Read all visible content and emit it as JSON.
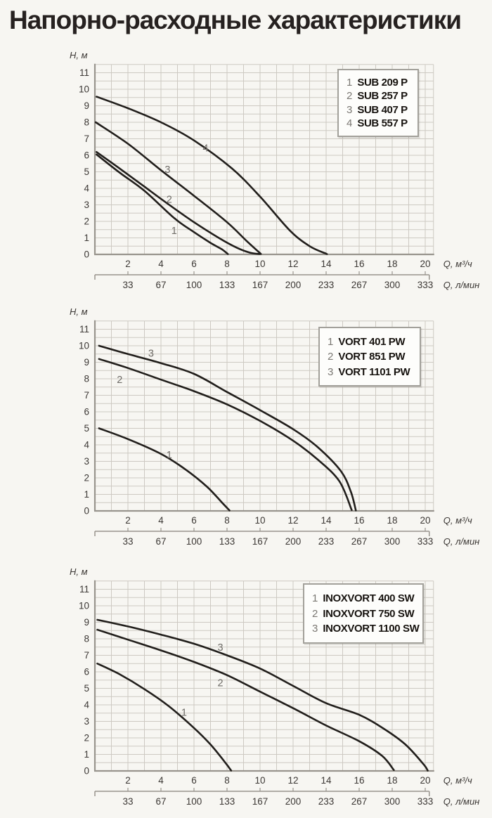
{
  "page": {
    "title": "Напорно-расходные характеристики"
  },
  "colors": {
    "background": "#f7f6f2",
    "grid": "#cdc9c2",
    "axis": "#98948d",
    "curve": "#211e1b",
    "text": "#3c3835",
    "muted": "#6f6c67",
    "legend_border": "#a2a09a"
  },
  "chart_data": [
    {
      "type": "line",
      "y_axis_label": "H, м",
      "x_axis_label_primary": "Q, м³/ч",
      "x_axis_label_secondary": "Q, л/мин",
      "y_ticks": [
        0,
        1,
        2,
        3,
        4,
        5,
        6,
        7,
        8,
        9,
        10,
        11
      ],
      "x_ticks_primary": [
        2,
        4,
        6,
        8,
        10,
        12,
        14,
        16,
        18,
        20
      ],
      "x_ticks_secondary": [
        33,
        67,
        100,
        133,
        167,
        200,
        233,
        267,
        300,
        333
      ],
      "xlim": [
        0,
        20.5
      ],
      "ylim": [
        0,
        11.5
      ],
      "legend": [
        {
          "num": "1",
          "label": "SUB 209 P"
        },
        {
          "num": "2",
          "label": "SUB 257 P"
        },
        {
          "num": "3",
          "label": "SUB 407 P"
        },
        {
          "num": "4",
          "label": "SUB 557 P"
        }
      ],
      "series": [
        {
          "num": "1",
          "name": "SUB 209 P",
          "label_pos": [
            4.8,
            1.45
          ],
          "points": [
            [
              0.1,
              6.05
            ],
            [
              1.5,
              4.95
            ],
            [
              3,
              3.85
            ],
            [
              4.8,
              2.2
            ],
            [
              6,
              1.35
            ],
            [
              7,
              0.7
            ],
            [
              7.7,
              0.3
            ],
            [
              8.05,
              0.02
            ]
          ]
        },
        {
          "num": "2",
          "name": "SUB 257 P",
          "label_pos": [
            4.5,
            3.35
          ],
          "points": [
            [
              0.1,
              6.2
            ],
            [
              1.5,
              5.2
            ],
            [
              3,
              4.1
            ],
            [
              4.5,
              3.0
            ],
            [
              6,
              1.95
            ],
            [
              7.5,
              1.0
            ],
            [
              8.6,
              0.4
            ],
            [
              9.4,
              0.1
            ],
            [
              10.0,
              0.02
            ]
          ]
        },
        {
          "num": "3",
          "name": "SUB 407 P",
          "label_pos": [
            4.4,
            5.15
          ],
          "points": [
            [
              0.05,
              8.0
            ],
            [
              2,
              6.7
            ],
            [
              4,
              5.1
            ],
            [
              6,
              3.55
            ],
            [
              8,
              1.95
            ],
            [
              9.2,
              0.8
            ],
            [
              10.05,
              0.03
            ]
          ]
        },
        {
          "num": "4",
          "name": "SUB 557 P",
          "label_pos": [
            6.7,
            6.45
          ],
          "points": [
            [
              0.1,
              9.55
            ],
            [
              2,
              8.85
            ],
            [
              4,
              8.0
            ],
            [
              6,
              6.9
            ],
            [
              8.3,
              5.2
            ],
            [
              10,
              3.5
            ],
            [
              11.8,
              1.45
            ],
            [
              13,
              0.5
            ],
            [
              14.05,
              0.02
            ]
          ]
        }
      ]
    },
    {
      "type": "line",
      "y_axis_label": "H, м",
      "x_axis_label_primary": "Q, м³/ч",
      "x_axis_label_secondary": "Q, л/мин",
      "y_ticks": [
        0,
        1,
        2,
        3,
        4,
        5,
        6,
        7,
        8,
        9,
        10,
        11
      ],
      "x_ticks_primary": [
        2,
        4,
        6,
        8,
        10,
        12,
        14,
        16,
        18,
        20
      ],
      "x_ticks_secondary": [
        33,
        67,
        100,
        133,
        167,
        200,
        233,
        267,
        300,
        333
      ],
      "xlim": [
        0,
        20.5
      ],
      "ylim": [
        0,
        11.5
      ],
      "legend": [
        {
          "num": "1",
          "label": "VORT 401 PW"
        },
        {
          "num": "2",
          "label": "VORT 851 PW"
        },
        {
          "num": "3",
          "label": "VORT 1101 PW"
        }
      ],
      "series": [
        {
          "num": "1",
          "name": "VORT 401 PW",
          "label_pos": [
            4.5,
            3.4
          ],
          "points": [
            [
              0.25,
              5.0
            ],
            [
              2,
              4.35
            ],
            [
              4,
              3.45
            ],
            [
              5.5,
              2.5
            ],
            [
              6.8,
              1.45
            ],
            [
              7.7,
              0.5
            ],
            [
              8.15,
              0.03
            ]
          ]
        },
        {
          "num": "2",
          "name": "VORT 851 PW",
          "label_pos": [
            1.5,
            7.95
          ],
          "points": [
            [
              0.25,
              9.2
            ],
            [
              2,
              8.65
            ],
            [
              4,
              7.95
            ],
            [
              6,
              7.25
            ],
            [
              8,
              6.45
            ],
            [
              10,
              5.45
            ],
            [
              12,
              4.25
            ],
            [
              13.5,
              3.1
            ],
            [
              14.8,
              1.8
            ],
            [
              15.55,
              0.05
            ]
          ]
        },
        {
          "num": "3",
          "name": "VORT 1101 PW",
          "label_pos": [
            3.4,
            9.55
          ],
          "points": [
            [
              0.25,
              10.0
            ],
            [
              2,
              9.5
            ],
            [
              4,
              8.95
            ],
            [
              6,
              8.3
            ],
            [
              8,
              7.2
            ],
            [
              10,
              6.1
            ],
            [
              12,
              4.95
            ],
            [
              13.5,
              3.85
            ],
            [
              14.9,
              2.4
            ],
            [
              15.5,
              1.15
            ],
            [
              15.8,
              0.03
            ]
          ]
        }
      ]
    },
    {
      "type": "line",
      "y_axis_label": "H, м",
      "x_axis_label_primary": "Q, м³/ч",
      "x_axis_label_secondary": "Q, л/мин",
      "y_ticks": [
        0,
        1,
        2,
        3,
        4,
        5,
        6,
        7,
        8,
        9,
        10,
        11
      ],
      "x_ticks_primary": [
        2,
        4,
        6,
        8,
        10,
        12,
        14,
        16,
        18,
        20
      ],
      "x_ticks_secondary": [
        33,
        67,
        100,
        133,
        167,
        200,
        233,
        267,
        300,
        333
      ],
      "xlim": [
        0,
        20.5
      ],
      "ylim": [
        0,
        11.5
      ],
      "legend": [
        {
          "num": "1",
          "label": "INOXVORT 400 SW"
        },
        {
          "num": "2",
          "label": "INOXVORT 750 SW"
        },
        {
          "num": "3",
          "label": "INOXVORT 1100 SW"
        }
      ],
      "series": [
        {
          "num": "1",
          "name": "INOXVORT 400 SW",
          "label_pos": [
            5.4,
            3.55
          ],
          "points": [
            [
              0.15,
              6.5
            ],
            [
              1.5,
              5.85
            ],
            [
              3,
              4.95
            ],
            [
              4.5,
              3.9
            ],
            [
              6,
              2.6
            ],
            [
              7,
              1.6
            ],
            [
              7.9,
              0.5
            ],
            [
              8.25,
              0.02
            ]
          ]
        },
        {
          "num": "2",
          "name": "INOXVORT 750 SW",
          "label_pos": [
            7.6,
            5.35
          ],
          "points": [
            [
              0.15,
              8.55
            ],
            [
              2,
              7.95
            ],
            [
              4,
              7.3
            ],
            [
              6,
              6.6
            ],
            [
              8,
              5.8
            ],
            [
              10,
              4.8
            ],
            [
              12,
              3.8
            ],
            [
              14,
              2.75
            ],
            [
              16,
              1.8
            ],
            [
              17.4,
              0.9
            ],
            [
              18.1,
              0.05
            ]
          ]
        },
        {
          "num": "3",
          "name": "INOXVORT 1100 SW",
          "label_pos": [
            7.6,
            7.5
          ],
          "points": [
            [
              0.15,
              9.15
            ],
            [
              2,
              8.75
            ],
            [
              4,
              8.25
            ],
            [
              6,
              7.7
            ],
            [
              8,
              7.0
            ],
            [
              10,
              6.2
            ],
            [
              12,
              5.15
            ],
            [
              14,
              4.1
            ],
            [
              16,
              3.4
            ],
            [
              17.5,
              2.55
            ],
            [
              18.8,
              1.6
            ],
            [
              19.9,
              0.4
            ],
            [
              20.15,
              0.02
            ]
          ]
        }
      ]
    }
  ]
}
